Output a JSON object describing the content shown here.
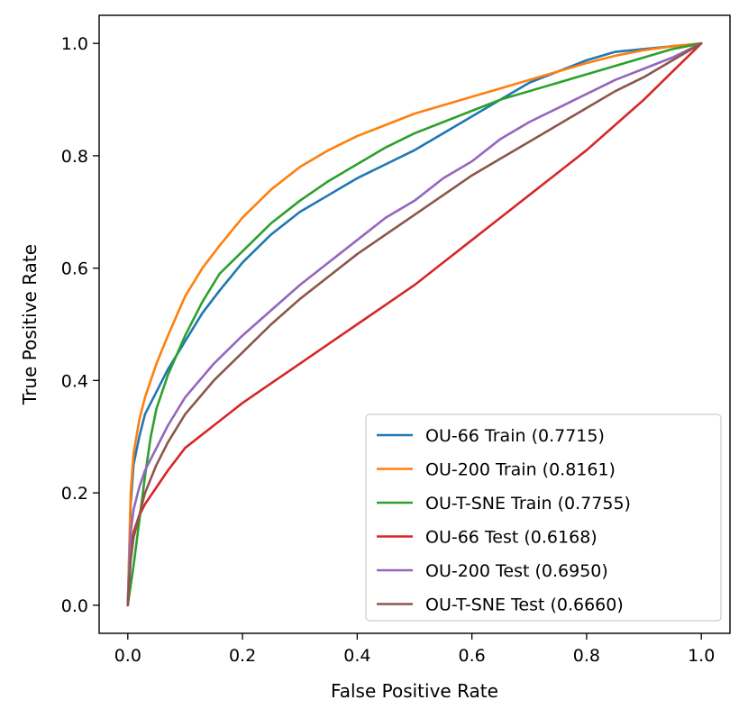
{
  "chart_data": {
    "type": "line",
    "title": "",
    "xlabel": "False Positive Rate",
    "ylabel": "True Positive Rate",
    "xlim": [
      -0.05,
      1.05
    ],
    "ylim": [
      -0.05,
      1.05
    ],
    "xticks": [
      0.0,
      0.2,
      0.4,
      0.6,
      0.8,
      1.0
    ],
    "xtick_labels": [
      "0.0",
      "0.2",
      "0.4",
      "0.6",
      "0.8",
      "1.0"
    ],
    "yticks": [
      0.0,
      0.2,
      0.4,
      0.6,
      0.8,
      1.0
    ],
    "ytick_labels": [
      "0.0",
      "0.2",
      "0.4",
      "0.6",
      "0.8",
      "1.0"
    ],
    "grid": false,
    "legend_position": "lower-right",
    "series": [
      {
        "name": "OU-66 Train (0.7715)",
        "color": "#1f77b4",
        "x": [
          0,
          0.005,
          0.01,
          0.02,
          0.03,
          0.05,
          0.07,
          0.1,
          0.13,
          0.16,
          0.2,
          0.25,
          0.3,
          0.35,
          0.4,
          0.45,
          0.5,
          0.55,
          0.6,
          0.65,
          0.7,
          0.75,
          0.8,
          0.85,
          0.9,
          0.95,
          1.0
        ],
        "y": [
          0,
          0.18,
          0.25,
          0.3,
          0.34,
          0.38,
          0.42,
          0.47,
          0.52,
          0.56,
          0.61,
          0.66,
          0.7,
          0.73,
          0.76,
          0.785,
          0.81,
          0.84,
          0.87,
          0.9,
          0.93,
          0.95,
          0.97,
          0.985,
          0.99,
          0.995,
          1.0
        ]
      },
      {
        "name": "OU-200 Train (0.8161)",
        "color": "#ff7f0e",
        "x": [
          0,
          0.005,
          0.01,
          0.02,
          0.03,
          0.05,
          0.07,
          0.1,
          0.13,
          0.16,
          0.2,
          0.25,
          0.3,
          0.35,
          0.4,
          0.45,
          0.5,
          0.55,
          0.6,
          0.65,
          0.7,
          0.75,
          0.8,
          0.85,
          0.9,
          0.95,
          1.0
        ],
        "y": [
          0,
          0.2,
          0.27,
          0.33,
          0.37,
          0.43,
          0.48,
          0.55,
          0.6,
          0.64,
          0.69,
          0.74,
          0.78,
          0.81,
          0.835,
          0.855,
          0.875,
          0.89,
          0.905,
          0.92,
          0.935,
          0.95,
          0.965,
          0.978,
          0.988,
          0.995,
          1.0
        ]
      },
      {
        "name": "OU-T-SNE Train (0.7755)",
        "color": "#2ca02c",
        "x": [
          0,
          0.01,
          0.02,
          0.03,
          0.04,
          0.05,
          0.07,
          0.1,
          0.13,
          0.16,
          0.2,
          0.25,
          0.3,
          0.35,
          0.4,
          0.45,
          0.5,
          0.55,
          0.6,
          0.65,
          0.7,
          0.75,
          0.8,
          0.85,
          0.9,
          0.95,
          1.0
        ],
        "y": [
          0,
          0.07,
          0.15,
          0.23,
          0.3,
          0.35,
          0.41,
          0.48,
          0.54,
          0.59,
          0.63,
          0.68,
          0.72,
          0.755,
          0.785,
          0.815,
          0.84,
          0.86,
          0.88,
          0.9,
          0.915,
          0.93,
          0.945,
          0.96,
          0.975,
          0.99,
          1.0
        ]
      },
      {
        "name": "OU-66 Test (0.6168)",
        "color": "#d62728",
        "x": [
          0,
          0.005,
          0.01,
          0.02,
          0.03,
          0.05,
          0.07,
          0.1,
          0.15,
          0.2,
          0.25,
          0.3,
          0.35,
          0.4,
          0.45,
          0.5,
          0.55,
          0.6,
          0.65,
          0.7,
          0.75,
          0.8,
          0.85,
          0.9,
          0.95,
          1.0
        ],
        "y": [
          0,
          0.1,
          0.13,
          0.16,
          0.18,
          0.21,
          0.24,
          0.28,
          0.32,
          0.36,
          0.395,
          0.43,
          0.465,
          0.5,
          0.535,
          0.57,
          0.61,
          0.65,
          0.69,
          0.73,
          0.77,
          0.81,
          0.855,
          0.9,
          0.95,
          1.0
        ]
      },
      {
        "name": "OU-200 Test (0.6950)",
        "color": "#9467bd",
        "x": [
          0,
          0.005,
          0.01,
          0.02,
          0.03,
          0.05,
          0.07,
          0.1,
          0.15,
          0.2,
          0.25,
          0.3,
          0.35,
          0.4,
          0.45,
          0.5,
          0.55,
          0.6,
          0.65,
          0.7,
          0.75,
          0.8,
          0.85,
          0.9,
          0.95,
          1.0
        ],
        "y": [
          0,
          0.13,
          0.17,
          0.21,
          0.24,
          0.28,
          0.32,
          0.37,
          0.43,
          0.48,
          0.525,
          0.57,
          0.61,
          0.65,
          0.69,
          0.72,
          0.76,
          0.79,
          0.83,
          0.86,
          0.885,
          0.91,
          0.935,
          0.955,
          0.975,
          1.0
        ]
      },
      {
        "name": "OU-T-SNE Test (0.6660)",
        "color": "#8c564b",
        "x": [
          0,
          0.005,
          0.01,
          0.02,
          0.03,
          0.05,
          0.07,
          0.1,
          0.15,
          0.2,
          0.25,
          0.3,
          0.35,
          0.4,
          0.45,
          0.5,
          0.55,
          0.6,
          0.65,
          0.7,
          0.75,
          0.8,
          0.85,
          0.9,
          0.95,
          1.0
        ],
        "y": [
          0,
          0.08,
          0.12,
          0.16,
          0.2,
          0.25,
          0.29,
          0.34,
          0.4,
          0.45,
          0.5,
          0.545,
          0.585,
          0.625,
          0.66,
          0.695,
          0.73,
          0.765,
          0.795,
          0.825,
          0.855,
          0.885,
          0.915,
          0.94,
          0.97,
          1.0
        ]
      }
    ]
  }
}
